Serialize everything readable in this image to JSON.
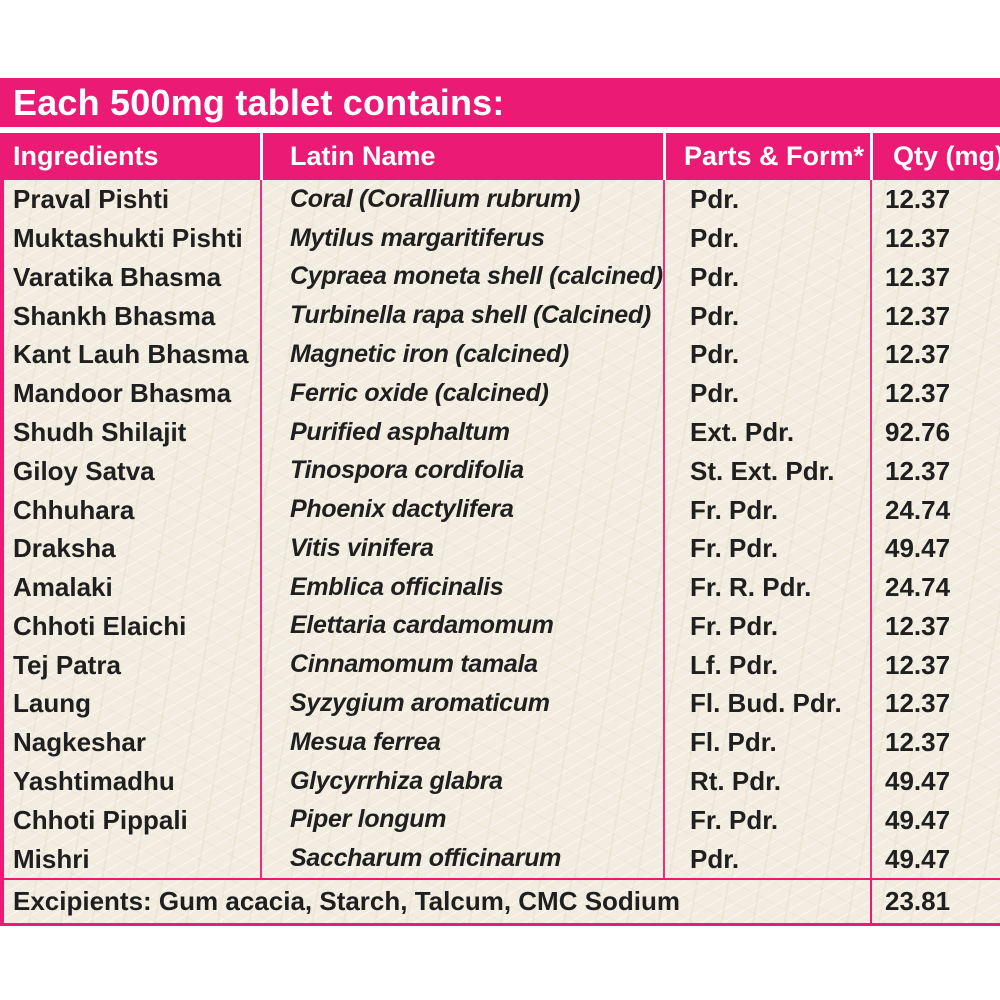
{
  "title": "Each 500mg tablet contains:",
  "columns": [
    "Ingredients",
    "Latin Name",
    "Parts & Form*",
    "Qty (mg)"
  ],
  "rows": [
    {
      "ingredient": "Praval Pishti",
      "latin": "Coral (Corallium rubrum)",
      "part": "Pdr.",
      "qty": "12.37"
    },
    {
      "ingredient": "Muktashukti Pishti",
      "latin": "Mytilus margaritiferus",
      "part": "Pdr.",
      "qty": "12.37"
    },
    {
      "ingredient": "Varatika Bhasma",
      "latin": "Cypraea moneta shell (calcined)",
      "part": "Pdr.",
      "qty": "12.37"
    },
    {
      "ingredient": "Shankh Bhasma",
      "latin": "Turbinella rapa shell (Calcined)",
      "part": "Pdr.",
      "qty": "12.37"
    },
    {
      "ingredient": "Kant Lauh Bhasma",
      "latin": "Magnetic iron (calcined)",
      "part": "Pdr.",
      "qty": "12.37"
    },
    {
      "ingredient": "Mandoor Bhasma",
      "latin": "Ferric oxide (calcined)",
      "part": "Pdr.",
      "qty": "12.37"
    },
    {
      "ingredient": "Shudh Shilajit",
      "latin": "Purified asphaltum",
      "part": "Ext. Pdr.",
      "qty": "92.76"
    },
    {
      "ingredient": "Giloy Satva",
      "latin": "Tinospora cordifolia",
      "part": "St. Ext. Pdr.",
      "qty": "12.37"
    },
    {
      "ingredient": "Chhuhara",
      "latin": "Phoenix dactylifera",
      "part": "Fr. Pdr.",
      "qty": "24.74"
    },
    {
      "ingredient": "Draksha",
      "latin": "Vitis vinifera",
      "part": "Fr. Pdr.",
      "qty": "49.47"
    },
    {
      "ingredient": "Amalaki",
      "latin": "Emblica officinalis",
      "part": "Fr. R. Pdr.",
      "qty": "24.74"
    },
    {
      "ingredient": "Chhoti Elaichi",
      "latin": "Elettaria cardamomum",
      "part": "Fr. Pdr.",
      "qty": "12.37"
    },
    {
      "ingredient": "Tej Patra",
      "latin": "Cinnamomum tamala",
      "part": "Lf. Pdr.",
      "qty": "12.37"
    },
    {
      "ingredient": "Laung",
      "latin": "Syzygium aromaticum",
      "part": "Fl. Bud. Pdr.",
      "qty": "12.37"
    },
    {
      "ingredient": "Nagkeshar",
      "latin": "Mesua ferrea",
      "part": "Fl. Pdr.",
      "qty": "12.37"
    },
    {
      "ingredient": "Yashtimadhu",
      "latin": "Glycyrrhiza glabra",
      "part": "Rt. Pdr.",
      "qty": "49.47"
    },
    {
      "ingredient": "Chhoti Pippali",
      "latin": "Piper longum",
      "part": "Fr. Pdr.",
      "qty": "49.47"
    },
    {
      "ingredient": "Mishri",
      "latin": "Saccharum officinarum",
      "part": "Pdr.",
      "qty": "49.47"
    }
  ],
  "excipients": {
    "label": "Excipients: Gum acacia, Starch, Talcum, CMC Sodium",
    "qty": "23.81"
  },
  "colors": {
    "pink": "#EA1A75",
    "paper": "#F2EDE0",
    "text": "#1F1F1F"
  }
}
